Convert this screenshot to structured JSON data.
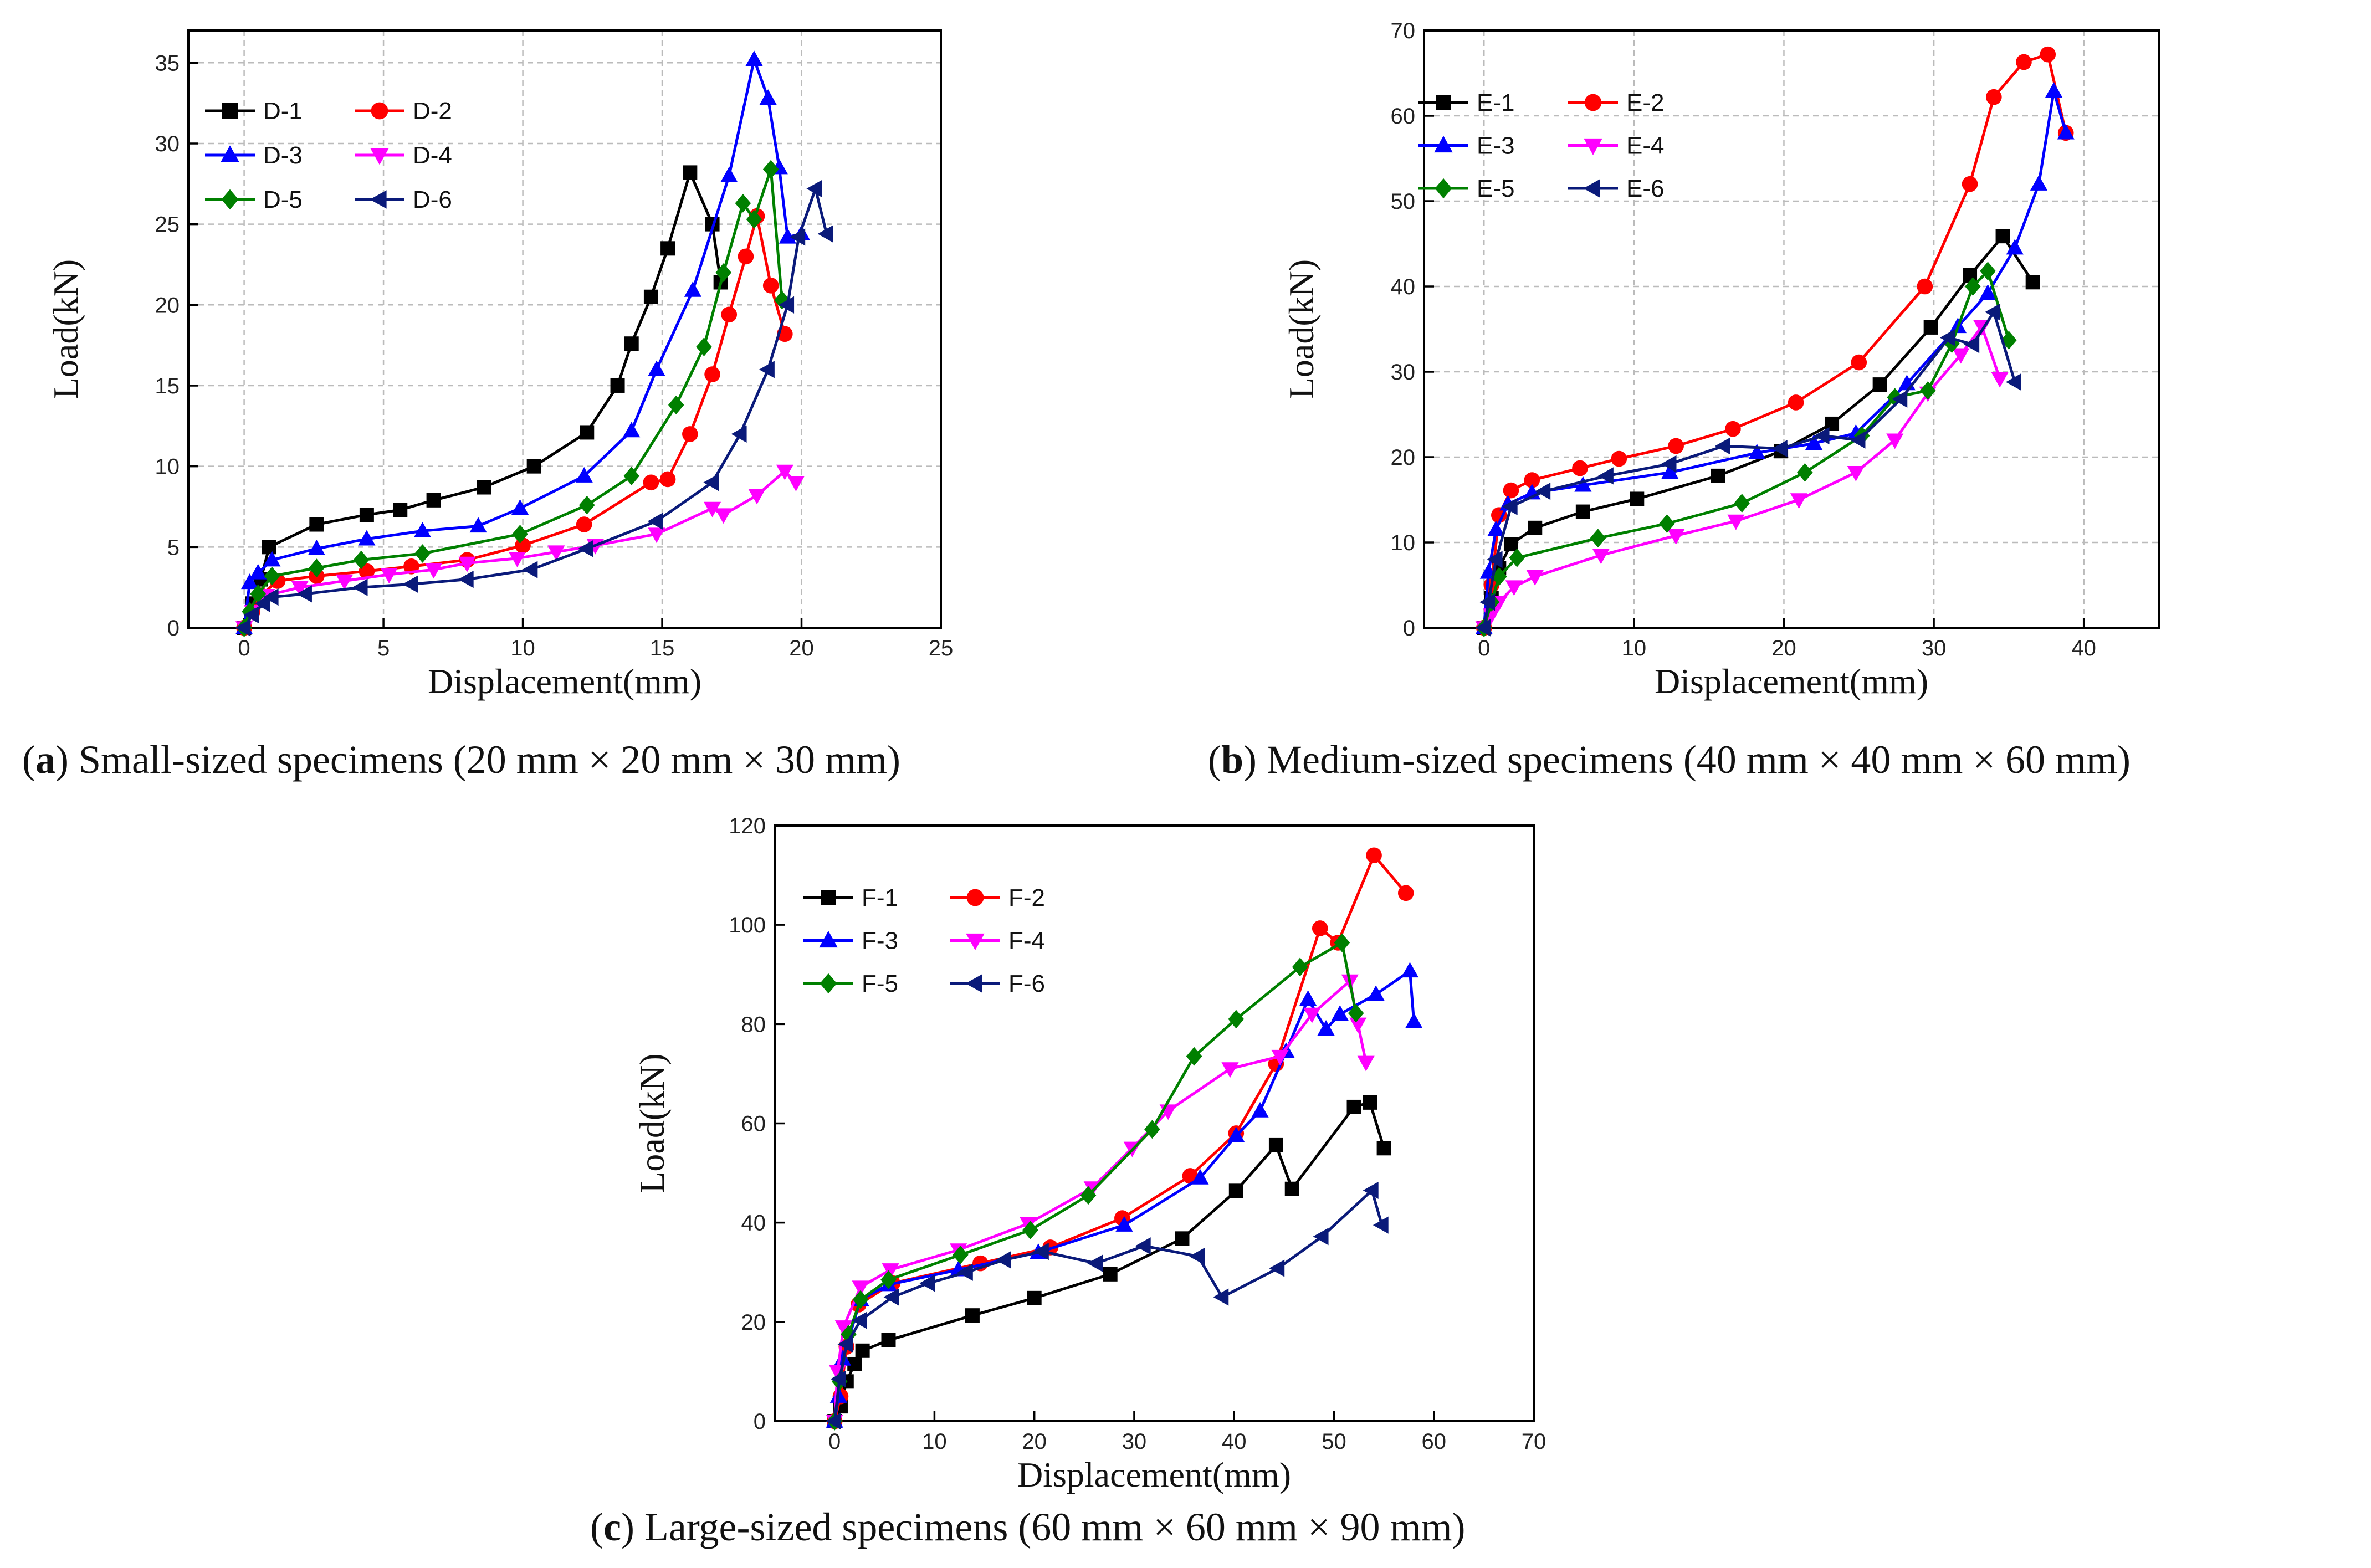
{
  "chart_data": [
    {
      "type": "line",
      "caption_letter": "a",
      "caption": "Small-sized specimens (20 mm × 20 mm × 30 mm)",
      "xlabel": "Displacement(mm)",
      "ylabel": "Load(kN)",
      "xlim": [
        -2,
        25
      ],
      "ylim": [
        0,
        37
      ],
      "xticks": [
        0,
        5,
        10,
        15,
        20,
        25
      ],
      "yticks": [
        0,
        5,
        10,
        15,
        20,
        25,
        30,
        35
      ],
      "grid": true,
      "legend": "top-left",
      "series": [
        {
          "name": "D-1",
          "color": "#000000",
          "marker": "square",
          "x": [
            0,
            0.3,
            0.6,
            0.9,
            2.6,
            4.4,
            5.6,
            6.8,
            8.6,
            10.4,
            12.3,
            13.4,
            13.9,
            14.6,
            15.2,
            16.0,
            16.8,
            17.1
          ],
          "y": [
            0,
            1.5,
            3.0,
            5.0,
            6.4,
            7.0,
            7.3,
            7.9,
            8.7,
            10.0,
            12.1,
            15.0,
            17.6,
            20.5,
            23.5,
            28.2,
            25.0,
            21.4
          ]
        },
        {
          "name": "D-2",
          "color": "#ff0000",
          "marker": "circle",
          "x": [
            0,
            0.3,
            0.6,
            1.2,
            2.6,
            4.4,
            6.0,
            8.0,
            10.0,
            12.2,
            14.6,
            15.2,
            16.0,
            16.8,
            17.4,
            18.0,
            18.4,
            18.9,
            19.4
          ],
          "y": [
            0,
            1.0,
            2.0,
            2.9,
            3.2,
            3.5,
            3.8,
            4.2,
            5.1,
            6.4,
            9.0,
            9.2,
            12.0,
            15.7,
            19.4,
            23.0,
            25.5,
            21.2,
            18.2
          ]
        },
        {
          "name": "D-3",
          "color": "#0000ff",
          "marker": "triangle-up",
          "x": [
            0,
            0.2,
            0.5,
            1.0,
            2.6,
            4.4,
            6.4,
            8.4,
            9.9,
            12.2,
            13.9,
            14.8,
            16.1,
            17.4,
            18.3,
            18.8,
            19.2,
            19.5,
            20.0
          ],
          "y": [
            0,
            2.8,
            3.4,
            4.2,
            4.9,
            5.5,
            6.0,
            6.3,
            7.4,
            9.4,
            12.2,
            16.0,
            20.9,
            28.0,
            35.2,
            32.8,
            28.5,
            24.2,
            24.4
          ]
        },
        {
          "name": "D-4",
          "color": "#ff00ff",
          "marker": "triangle-down",
          "x": [
            0,
            0.3,
            0.8,
            2.0,
            3.6,
            5.2,
            6.8,
            8.0,
            9.8,
            11.2,
            12.6,
            14.8,
            16.8,
            17.2,
            18.4,
            19.4,
            19.8
          ],
          "y": [
            0,
            1.0,
            2.0,
            2.5,
            2.9,
            3.3,
            3.6,
            4.0,
            4.3,
            4.7,
            5.1,
            5.8,
            7.4,
            7.0,
            8.2,
            9.7,
            9.0
          ]
        },
        {
          "name": "D-5",
          "color": "#008000",
          "marker": "diamond",
          "x": [
            0,
            0.2,
            0.5,
            1.0,
            2.6,
            4.2,
            6.4,
            9.9,
            12.3,
            13.9,
            15.5,
            16.5,
            17.2,
            17.9,
            18.3,
            18.9,
            19.3
          ],
          "y": [
            0,
            1.0,
            2.1,
            3.2,
            3.7,
            4.2,
            4.6,
            5.8,
            7.6,
            9.4,
            13.8,
            17.4,
            22.0,
            26.3,
            25.3,
            28.4,
            20.3
          ]
        },
        {
          "name": "D-6",
          "color": "#0a1a7a",
          "marker": "triangle-left",
          "x": [
            0,
            0.3,
            0.7,
            1.0,
            2.2,
            4.2,
            6.0,
            8.0,
            10.3,
            12.3,
            14.8,
            16.8,
            17.8,
            18.8,
            19.5,
            19.9,
            20.5,
            20.9
          ],
          "y": [
            0,
            0.8,
            1.5,
            1.9,
            2.1,
            2.5,
            2.7,
            3.0,
            3.6,
            4.9,
            6.6,
            9.0,
            12.0,
            16.0,
            20.0,
            24.2,
            27.2,
            24.4
          ]
        }
      ]
    },
    {
      "type": "line",
      "caption_letter": "b",
      "caption": "Medium-sized specimens (40 mm × 40 mm × 60 mm)",
      "xlabel": "Displacement(mm)",
      "ylabel": "Load(kN)",
      "xlim": [
        -4,
        45
      ],
      "ylim": [
        0,
        70
      ],
      "xticks": [
        0,
        10,
        20,
        30,
        40
      ],
      "yticks": [
        0,
        10,
        20,
        30,
        40,
        50,
        60,
        70
      ],
      "grid": true,
      "legend": "top-left",
      "series": [
        {
          "name": "E-1",
          "color": "#000000",
          "marker": "square",
          "x": [
            0,
            0.5,
            1.0,
            1.8,
            3.4,
            6.6,
            10.2,
            15.6,
            19.8,
            23.2,
            26.4,
            29.8,
            32.4,
            34.6,
            36.6
          ],
          "y": [
            0,
            3.5,
            7.0,
            9.8,
            11.7,
            13.6,
            15.1,
            17.8,
            20.7,
            23.9,
            28.5,
            35.2,
            41.3,
            45.9,
            40.5
          ]
        },
        {
          "name": "E-2",
          "color": "#ff0000",
          "marker": "circle",
          "x": [
            0,
            0.5,
            1.0,
            1.8,
            3.2,
            6.4,
            9.0,
            12.8,
            16.6,
            20.8,
            25.0,
            29.4,
            32.4,
            34.0,
            36.0,
            37.6,
            38.8
          ],
          "y": [
            0,
            5.0,
            13.2,
            16.1,
            17.3,
            18.7,
            19.8,
            21.3,
            23.3,
            26.4,
            31.1,
            40.0,
            52.0,
            62.2,
            66.3,
            67.2,
            58.0
          ]
        },
        {
          "name": "E-3",
          "color": "#0000ff",
          "marker": "triangle-up",
          "x": [
            0,
            0.3,
            0.8,
            1.6,
            3.2,
            6.6,
            12.4,
            18.2,
            22.0,
            24.8,
            28.2,
            31.6,
            33.6,
            35.4,
            37.0,
            38.0,
            38.8
          ],
          "y": [
            0,
            6.5,
            11.5,
            14.5,
            15.8,
            16.7,
            18.2,
            20.5,
            21.6,
            22.8,
            28.6,
            35.3,
            39.2,
            44.5,
            52.0,
            62.9,
            58.0
          ]
        },
        {
          "name": "E-4",
          "color": "#ff00ff",
          "marker": "triangle-down",
          "x": [
            0,
            0.5,
            1.0,
            2.0,
            3.4,
            7.8,
            12.8,
            16.8,
            21.0,
            24.8,
            27.4,
            29.6,
            31.8,
            33.2,
            34.4
          ],
          "y": [
            0,
            1.5,
            3.0,
            4.8,
            6.0,
            8.5,
            10.8,
            12.5,
            15.0,
            18.2,
            22.0,
            27.5,
            32.0,
            35.3,
            29.2
          ]
        },
        {
          "name": "E-5",
          "color": "#008000",
          "marker": "diamond",
          "x": [
            0,
            0.5,
            1.0,
            2.2,
            7.6,
            12.2,
            17.2,
            21.4,
            25.2,
            27.4,
            29.6,
            31.2,
            32.6,
            33.6,
            35.0
          ],
          "y": [
            0,
            3.0,
            6.0,
            8.2,
            10.5,
            12.2,
            14.6,
            18.2,
            22.5,
            27.0,
            27.8,
            33.3,
            40.0,
            41.8,
            33.7
          ]
        },
        {
          "name": "E-6",
          "color": "#0a1a7a",
          "marker": "triangle-left",
          "x": [
            0,
            0.3,
            0.8,
            1.8,
            4.0,
            8.2,
            12.4,
            16.0,
            19.8,
            22.6,
            25.0,
            27.8,
            31.0,
            32.6,
            34.0,
            35.4
          ],
          "y": [
            0,
            3.0,
            8.0,
            14.2,
            16.0,
            17.8,
            19.2,
            21.3,
            21.0,
            22.5,
            22.0,
            26.8,
            34.0,
            33.2,
            37.0,
            28.8
          ]
        }
      ]
    },
    {
      "type": "line",
      "caption_letter": "c",
      "caption": "Large-sized specimens (60 mm × 60 mm × 90 mm)",
      "xlabel": "Displacement(mm)",
      "ylabel": "Load(kN)",
      "xlim": [
        -6,
        70
      ],
      "ylim": [
        0,
        120
      ],
      "xticks": [
        0,
        10,
        20,
        30,
        40,
        50,
        60,
        70
      ],
      "yticks": [
        0,
        20,
        40,
        60,
        80,
        100,
        120
      ],
      "grid": false,
      "legend": "top-left",
      "series": [
        {
          "name": "F-1",
          "color": "#000000",
          "marker": "square",
          "x": [
            0,
            0.6,
            1.2,
            2.0,
            2.8,
            5.4,
            13.8,
            20.0,
            27.6,
            34.8,
            40.2,
            44.2,
            45.8,
            52.0,
            53.6,
            55.0
          ],
          "y": [
            0,
            3.0,
            8.0,
            11.5,
            14.2,
            16.3,
            21.3,
            24.8,
            29.6,
            36.8,
            46.4,
            55.6,
            46.8,
            63.3,
            64.2,
            55.0
          ]
        },
        {
          "name": "F-2",
          "color": "#ff0000",
          "marker": "circle",
          "x": [
            0,
            0.6,
            1.2,
            2.4,
            5.8,
            14.6,
            21.6,
            28.8,
            35.6,
            40.2,
            44.2,
            48.6,
            50.4,
            54.0,
            57.2
          ],
          "y": [
            0,
            5.0,
            15.0,
            23.5,
            27.8,
            31.8,
            35.0,
            40.9,
            49.4,
            58.0,
            72.0,
            99.3,
            96.4,
            114.0,
            106.4
          ]
        },
        {
          "name": "F-3",
          "color": "#0000ff",
          "marker": "triangle-up",
          "x": [
            0,
            0.4,
            0.8,
            2.6,
            5.4,
            12.4,
            20.4,
            29.0,
            36.6,
            40.2,
            42.6,
            45.2,
            47.4,
            49.2,
            50.6,
            54.2,
            57.6,
            58.0
          ],
          "y": [
            0,
            5.0,
            12.5,
            24.5,
            27.5,
            30.5,
            34.0,
            39.5,
            49.0,
            57.5,
            62.5,
            74.5,
            85.0,
            79.0,
            82.0,
            86.0,
            90.7,
            80.5
          ]
        },
        {
          "name": "F-4",
          "color": "#ff00ff",
          "marker": "triangle-down",
          "x": [
            0,
            0.3,
            0.9,
            2.6,
            5.6,
            12.4,
            19.4,
            25.8,
            29.8,
            33.4,
            39.6,
            44.6,
            47.8,
            51.6,
            52.4,
            53.2
          ],
          "y": [
            0,
            10.0,
            19.0,
            27.0,
            30.5,
            34.5,
            39.8,
            47.0,
            55.0,
            62.5,
            71.0,
            73.5,
            82.0,
            88.7,
            80.0,
            72.3
          ]
        },
        {
          "name": "F-5",
          "color": "#008000",
          "marker": "diamond",
          "x": [
            0,
            0.5,
            1.4,
            2.6,
            5.4,
            12.6,
            19.6,
            25.4,
            31.8,
            36.0,
            40.2,
            46.6,
            50.8,
            52.2
          ],
          "y": [
            0,
            8.0,
            17.5,
            24.5,
            28.5,
            33.5,
            38.5,
            45.5,
            58.8,
            73.5,
            81.0,
            91.5,
            96.4,
            82.2
          ]
        },
        {
          "name": "F-6",
          "color": "#0a1a7a",
          "marker": "triangle-left",
          "x": [
            0,
            0.5,
            1.2,
            2.6,
            5.8,
            9.4,
            13.2,
            17.0,
            20.8,
            26.2,
            31.0,
            36.4,
            38.8,
            44.4,
            48.8,
            53.8,
            54.8
          ],
          "y": [
            0,
            8.5,
            15.5,
            20.3,
            25.0,
            27.8,
            30.0,
            32.5,
            34.2,
            31.8,
            35.3,
            33.2,
            25.0,
            30.8,
            37.2,
            46.5,
            39.5
          ]
        }
      ]
    }
  ]
}
